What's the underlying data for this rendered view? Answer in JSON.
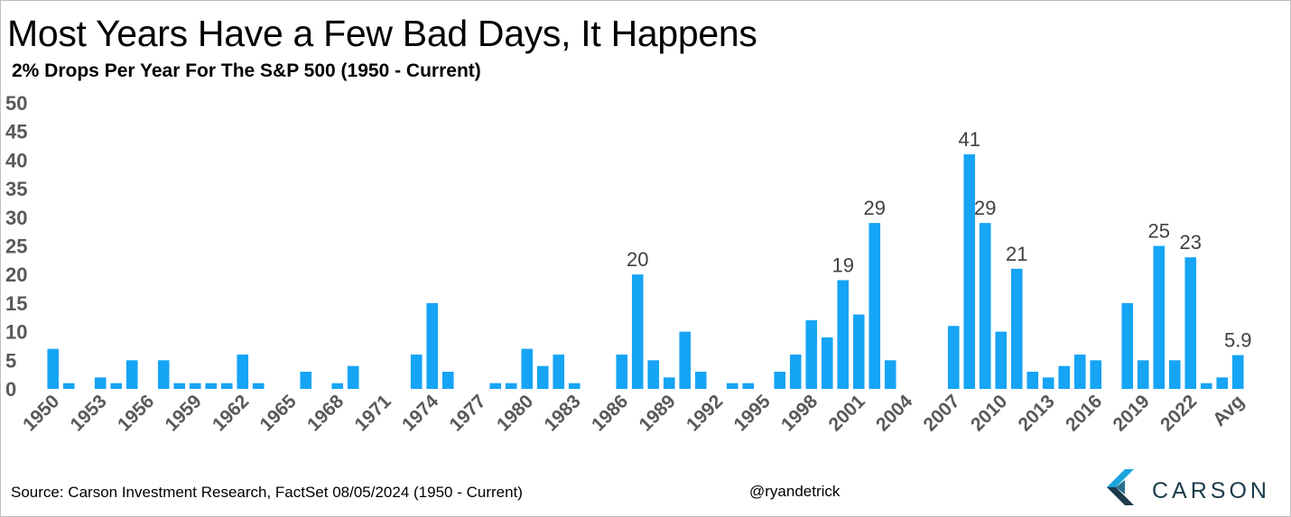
{
  "header": {
    "title": "Most Years Have a Few Bad Days, It Happens",
    "subtitle": "2% Drops Per Year For The S&P 500 (1950 - Current)"
  },
  "footer": {
    "source": "Source: Carson Investment Research, FactSet 08/05/2024 (1950 - Current)",
    "handle": "@ryandetrick",
    "logo_text": "CARSON"
  },
  "colors": {
    "bar": "#16A4F5",
    "axis_text": "#595959",
    "label_text": "#404040",
    "logo_dark": "#1b3a4b",
    "logo_light": "#1aa3dd"
  },
  "chart_data": {
    "type": "bar",
    "categories": [
      "1950",
      "1951",
      "1952",
      "1953",
      "1954",
      "1955",
      "1956",
      "1957",
      "1958",
      "1959",
      "1960",
      "1961",
      "1962",
      "1963",
      "1964",
      "1965",
      "1966",
      "1967",
      "1968",
      "1969",
      "1970",
      "1971",
      "1972",
      "1973",
      "1974",
      "1975",
      "1976",
      "1977",
      "1978",
      "1979",
      "1980",
      "1981",
      "1982",
      "1983",
      "1984",
      "1985",
      "1986",
      "1987",
      "1988",
      "1989",
      "1990",
      "1991",
      "1992",
      "1993",
      "1994",
      "1995",
      "1996",
      "1997",
      "1998",
      "1999",
      "2000",
      "2001",
      "2002",
      "2003",
      "2004",
      "2005",
      "2006",
      "2007",
      "2008",
      "2009",
      "2010",
      "2011",
      "2012",
      "2013",
      "2014",
      "2015",
      "2016",
      "2017",
      "2018",
      "2019",
      "2020",
      "2021",
      "2022",
      "2023",
      "2024",
      "Avg"
    ],
    "values": [
      7,
      1,
      0,
      2,
      1,
      5,
      0,
      5,
      1,
      1,
      1,
      1,
      6,
      1,
      0,
      0,
      3,
      0,
      1,
      4,
      0,
      0,
      0,
      6,
      15,
      3,
      0,
      0,
      1,
      1,
      7,
      4,
      6,
      1,
      0,
      0,
      6,
      20,
      5,
      2,
      10,
      3,
      0,
      1,
      1,
      0,
      3,
      6,
      12,
      9,
      19,
      13,
      29,
      5,
      0,
      0,
      0,
      11,
      41,
      29,
      10,
      21,
      3,
      2,
      4,
      6,
      5,
      0,
      15,
      5,
      25,
      5,
      23,
      1,
      2,
      5.9
    ],
    "tick_labels": [
      "1950",
      "1953",
      "1956",
      "1959",
      "1962",
      "1965",
      "1968",
      "1971",
      "1974",
      "1977",
      "1980",
      "1983",
      "1986",
      "1989",
      "1992",
      "1995",
      "1998",
      "2001",
      "2004",
      "2007",
      "2010",
      "2013",
      "2016",
      "2019",
      "2022",
      "Avg"
    ],
    "data_labels": [
      {
        "category": "1987",
        "text": "20"
      },
      {
        "category": "2000",
        "text": "19"
      },
      {
        "category": "2002",
        "text": "29"
      },
      {
        "category": "2008",
        "text": "41"
      },
      {
        "category": "2009",
        "text": "29"
      },
      {
        "category": "2011",
        "text": "21"
      },
      {
        "category": "2020",
        "text": "25"
      },
      {
        "category": "2022",
        "text": "23"
      },
      {
        "category": "Avg",
        "text": "5.9"
      }
    ],
    "y_ticks": [
      "0",
      "5",
      "10",
      "15",
      "20",
      "25",
      "30",
      "35",
      "40",
      "45",
      "50"
    ],
    "ylim": [
      0,
      50
    ],
    "grid": false,
    "legend": "none"
  }
}
